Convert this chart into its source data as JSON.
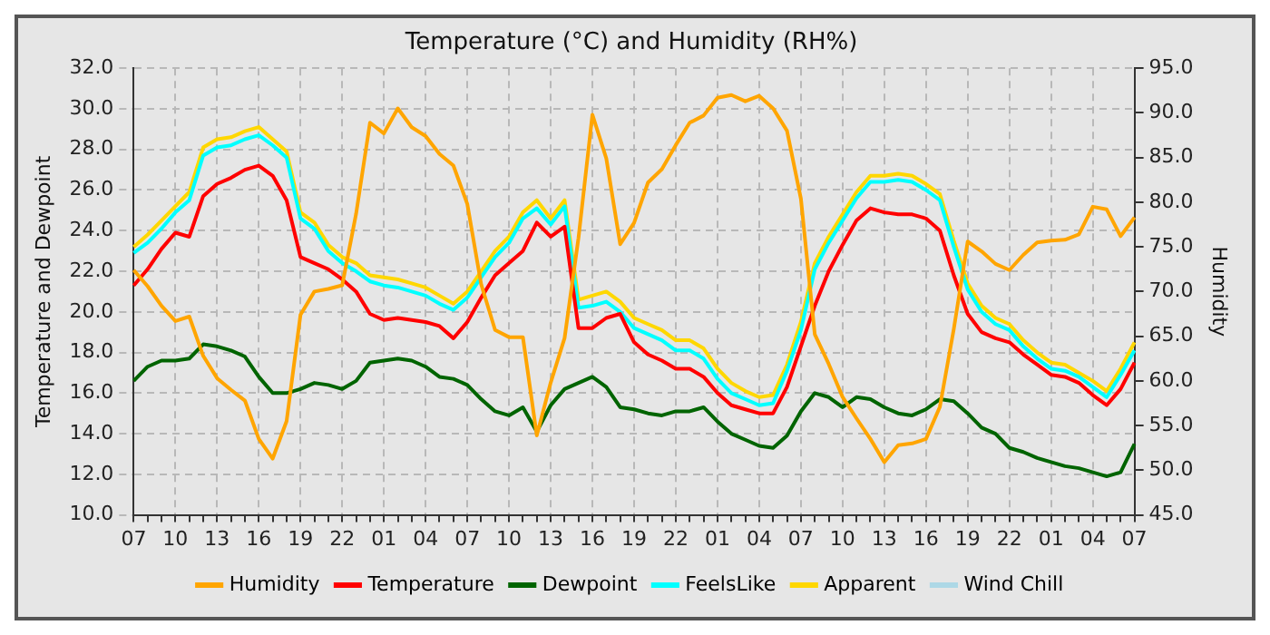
{
  "chart_data": {
    "type": "line",
    "title": "Temperature (°C) and Humidity (RH%)",
    "ylabel": "Temperature and Dewpoint",
    "y2label": "Humidity",
    "categories": [
      "07",
      null,
      null,
      "10",
      null,
      null,
      "13",
      null,
      null,
      "16",
      null,
      null,
      "19",
      null,
      null,
      "22",
      null,
      null,
      "01",
      null,
      null,
      "04",
      null,
      null,
      "07",
      null,
      null,
      "10",
      null,
      null,
      "13",
      null,
      null,
      "16",
      null,
      null,
      "19",
      null,
      null,
      "22",
      null,
      null,
      "01",
      null,
      null,
      "04",
      null,
      null,
      "07",
      null,
      null,
      "10",
      null,
      null,
      "13",
      null,
      null,
      "16",
      null,
      null,
      "19",
      null,
      null,
      "22",
      null,
      null,
      "01",
      null,
      null,
      "04",
      null,
      null,
      "07"
    ],
    "ylim": [
      10,
      32
    ],
    "y2lim": [
      45,
      95
    ],
    "yticks": [
      {
        "value": 10,
        "label": "10.0"
      },
      {
        "value": 12,
        "label": "12.0"
      },
      {
        "value": 14,
        "label": "14.0"
      },
      {
        "value": 16,
        "label": "16.0"
      },
      {
        "value": 18,
        "label": "18.0"
      },
      {
        "value": 20,
        "label": "20.0"
      },
      {
        "value": 22,
        "label": "22.0"
      },
      {
        "value": 24,
        "label": "24.0"
      },
      {
        "value": 26,
        "label": "26.0"
      },
      {
        "value": 28,
        "label": "28.0"
      },
      {
        "value": 30,
        "label": "30.0"
      },
      {
        "value": 32,
        "label": "32.0"
      }
    ],
    "y2ticks": [
      {
        "value": 45,
        "label": "45.0"
      },
      {
        "value": 50,
        "label": "50.0"
      },
      {
        "value": 55,
        "label": "55.0"
      },
      {
        "value": 60,
        "label": "60.0"
      },
      {
        "value": 65,
        "label": "65.0"
      },
      {
        "value": 70,
        "label": "70.0"
      },
      {
        "value": 75,
        "label": "75.0"
      },
      {
        "value": 80,
        "label": "80.0"
      },
      {
        "value": 85,
        "label": "85.0"
      },
      {
        "value": 90,
        "label": "90.0"
      },
      {
        "value": 95,
        "label": "95.0"
      }
    ],
    "grid": true,
    "legend": "bottom",
    "marker": "none",
    "line_style": "solid",
    "series": [
      {
        "name": "Humidity",
        "color": "#ffa500",
        "axis": "y2",
        "values": [
          72.4,
          70.6,
          68.4,
          66.7,
          67.2,
          62.8,
          60.3,
          59.0,
          57.8,
          53.5,
          51.3,
          55.5,
          67.4,
          70.0,
          70.3,
          70.7,
          78.7,
          88.9,
          87.7,
          90.5,
          88.4,
          87.4,
          85.4,
          84.1,
          79.8,
          70.8,
          65.7,
          64.9,
          64.9,
          53.9,
          59.8,
          64.8,
          76.0,
          89.8,
          84.9,
          75.3,
          77.7,
          82.2,
          83.7,
          86.4,
          88.9,
          89.7,
          91.7,
          92.0,
          91.3,
          91.9,
          90.5,
          88.0,
          80.4,
          65.2,
          61.9,
          58.2,
          55.8,
          53.5,
          50.9,
          52.8,
          53.0,
          53.5,
          57.1,
          65.8,
          75.6,
          74.5,
          73.1,
          72.4,
          74.1,
          75.5,
          75.7,
          75.8,
          76.4,
          79.5,
          79.2,
          76.2,
          78.3
        ]
      },
      {
        "name": "Temperature",
        "color": "#ff0000",
        "values": [
          21.3,
          22.1,
          23.1,
          23.9,
          23.7,
          25.7,
          26.3,
          26.6,
          27.0,
          27.2,
          26.7,
          25.5,
          22.7,
          22.4,
          22.1,
          21.6,
          21.0,
          19.9,
          19.6,
          19.7,
          19.6,
          19.5,
          19.3,
          18.7,
          19.5,
          20.7,
          21.8,
          22.4,
          23.0,
          24.4,
          23.7,
          24.2,
          19.2,
          19.2,
          19.7,
          19.9,
          18.5,
          17.9,
          17.6,
          17.2,
          17.2,
          16.8,
          16.0,
          15.4,
          15.2,
          15.0,
          15.0,
          16.3,
          18.3,
          20.3,
          22.0,
          23.3,
          24.5,
          25.1,
          24.9,
          24.8,
          24.8,
          24.6,
          24.0,
          21.8,
          19.9,
          19.0,
          18.7,
          18.5,
          17.9,
          17.4,
          16.9,
          16.8,
          16.5,
          15.9,
          15.4,
          16.2,
          17.5
        ]
      },
      {
        "name": "Dewpoint",
        "color": "#006400",
        "values": [
          16.6,
          17.3,
          17.6,
          17.6,
          17.7,
          18.4,
          18.3,
          18.1,
          17.8,
          16.8,
          16.0,
          16.0,
          16.2,
          16.5,
          16.4,
          16.2,
          16.6,
          17.5,
          17.6,
          17.7,
          17.6,
          17.3,
          16.8,
          16.7,
          16.4,
          15.7,
          15.1,
          14.9,
          15.3,
          14.1,
          15.4,
          16.2,
          16.5,
          16.8,
          16.3,
          15.3,
          15.2,
          15.0,
          14.9,
          15.1,
          15.1,
          15.3,
          14.6,
          14.0,
          13.7,
          13.4,
          13.3,
          13.9,
          15.1,
          16.0,
          15.8,
          15.3,
          15.8,
          15.7,
          15.3,
          15.0,
          14.9,
          15.2,
          15.7,
          15.6,
          15.0,
          14.3,
          14.0,
          13.3,
          13.1,
          12.8,
          12.6,
          12.4,
          12.3,
          12.1,
          11.9,
          12.1,
          13.5
        ]
      },
      {
        "name": "FeelsLike",
        "color": "#00ffff",
        "values": [
          22.9,
          23.4,
          24.1,
          24.9,
          25.5,
          27.7,
          28.1,
          28.2,
          28.5,
          28.7,
          28.2,
          27.6,
          24.6,
          24.1,
          23.0,
          22.4,
          22.0,
          21.5,
          21.3,
          21.2,
          21.0,
          20.8,
          20.4,
          20.1,
          20.7,
          21.7,
          22.7,
          23.4,
          24.6,
          25.1,
          24.3,
          25.2,
          20.2,
          20.3,
          20.5,
          20.0,
          19.2,
          18.9,
          18.6,
          18.1,
          18.1,
          17.7,
          16.7,
          16.0,
          15.7,
          15.4,
          15.5,
          17.1,
          19.1,
          22.1,
          23.4,
          24.5,
          25.6,
          26.4,
          26.4,
          26.5,
          26.4,
          26.0,
          25.5,
          23.2,
          21.1,
          20.0,
          19.4,
          19.1,
          18.3,
          17.7,
          17.2,
          17.1,
          16.8,
          16.3,
          15.8,
          16.9,
          18.1
        ]
      },
      {
        "name": "Apparent",
        "color": "#ffd700",
        "values": [
          23.2,
          23.8,
          24.5,
          25.2,
          25.9,
          28.1,
          28.5,
          28.6,
          28.9,
          29.1,
          28.5,
          27.9,
          24.9,
          24.4,
          23.3,
          22.7,
          22.4,
          21.8,
          21.7,
          21.6,
          21.4,
          21.2,
          20.8,
          20.4,
          21.0,
          22.0,
          23.0,
          23.7,
          24.9,
          25.5,
          24.6,
          25.5,
          20.6,
          20.8,
          21.0,
          20.5,
          19.7,
          19.4,
          19.1,
          18.6,
          18.6,
          18.2,
          17.2,
          16.5,
          16.1,
          15.8,
          15.9,
          17.4,
          19.5,
          22.4,
          23.7,
          24.8,
          25.9,
          26.7,
          26.7,
          26.8,
          26.7,
          26.3,
          25.8,
          23.5,
          21.4,
          20.3,
          19.7,
          19.4,
          18.6,
          18.0,
          17.5,
          17.4,
          17.0,
          16.6,
          16.1,
          17.2,
          18.5
        ]
      },
      {
        "name": "Wind Chill",
        "color": "#add8e6",
        "values": [
          null,
          null,
          null,
          null,
          null,
          null,
          null,
          null,
          null,
          null,
          null,
          null,
          null,
          null,
          null,
          null,
          null,
          null,
          null,
          null,
          null,
          null,
          null,
          null,
          null,
          null,
          null,
          null,
          null,
          null,
          null,
          null,
          null,
          null,
          null,
          null,
          null,
          null,
          null,
          null,
          null,
          null,
          null,
          null,
          null,
          null,
          null,
          null,
          null,
          null,
          null,
          null,
          null,
          null,
          null,
          null,
          null,
          null,
          null,
          null,
          null,
          null,
          null,
          null,
          null,
          null,
          null,
          null,
          null,
          null,
          null,
          null,
          null
        ]
      }
    ]
  }
}
